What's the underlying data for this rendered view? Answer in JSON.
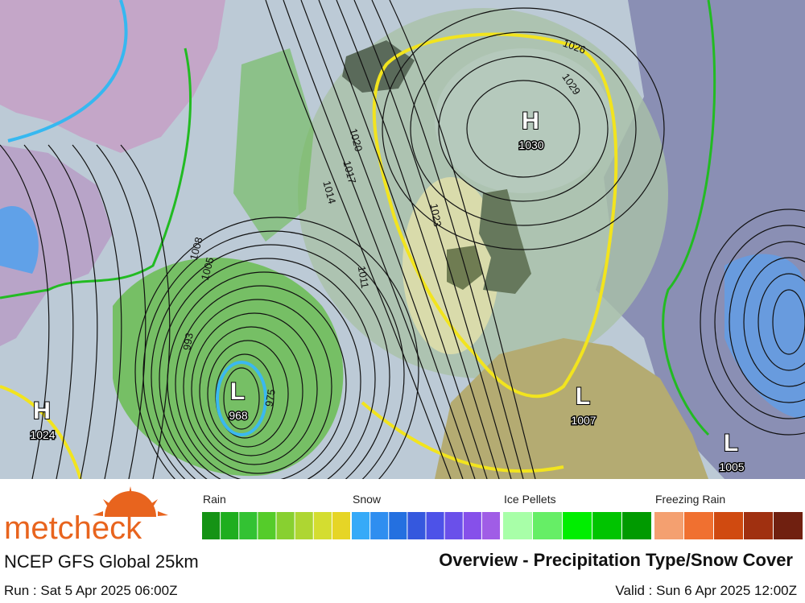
{
  "logo": "metcheck",
  "map": {
    "pressure_centers": [
      {
        "symbol": "H",
        "value": 1030
      },
      {
        "symbol": "H",
        "value": 1024
      },
      {
        "symbol": "L",
        "value": 968
      },
      {
        "symbol": "L",
        "value": 1007
      },
      {
        "symbol": "L",
        "value": 1005
      }
    ],
    "isobar_labels": [
      1026,
      1029,
      1020,
      1017,
      1014,
      1011,
      1008,
      1005,
      993,
      1023,
      975
    ]
  },
  "legend": [
    {
      "label": "Rain",
      "colors": [
        "#159315",
        "#1fae1f",
        "#33c233",
        "#55cc2a",
        "#88d030",
        "#aed632",
        "#d4dd30",
        "#e6d526"
      ]
    },
    {
      "label": "Snow",
      "colors": [
        "#36aaf8",
        "#2f8ef0",
        "#2470e0",
        "#3558de",
        "#4d52e8",
        "#6a50ea",
        "#8650ea",
        "#a05de6"
      ]
    },
    {
      "label": "Ice Pellets",
      "colors": [
        "#a8ffa8",
        "#66ee66",
        "#00ee00",
        "#00c400",
        "#009a00"
      ]
    },
    {
      "label": "Freezing Rain",
      "colors": [
        "#f4a070",
        "#f07030",
        "#d04a10",
        "#a03010",
        "#702010"
      ]
    }
  ],
  "footer": {
    "model": "NCEP GFS Global 25km",
    "title": "Overview - Precipitation Type/Snow Cover",
    "run": "Run : Sat 5 Apr 2025 06:00Z",
    "valid": "Valid : Sun 6 Apr 2025 12:00Z"
  }
}
